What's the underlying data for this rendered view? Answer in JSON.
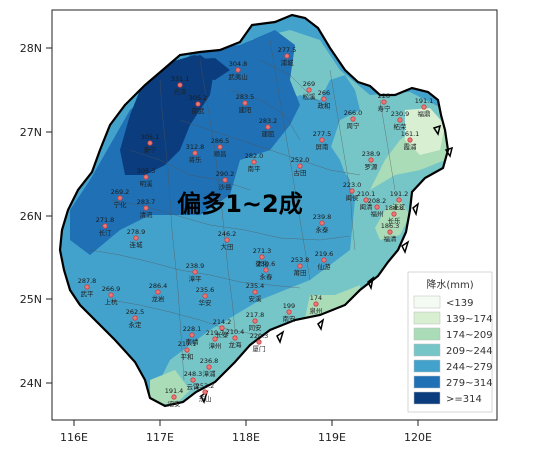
{
  "map": {
    "annotation": "偏多1~2成",
    "x_ticks": [
      "116E",
      "117E",
      "118E",
      "119E",
      "120E"
    ],
    "y_ticks": [
      "28N",
      "27N",
      "26N",
      "25N",
      "24N"
    ]
  },
  "legend": {
    "title": "降水(mm)",
    "items": [
      {
        "label": "<139",
        "color": "#f4fbf2"
      },
      {
        "label": "139~174",
        "color": "#d8efd2"
      },
      {
        "label": "174~209",
        "color": "#aadcb8"
      },
      {
        "label": "209~244",
        "color": "#76c6c8"
      },
      {
        "label": "244~279",
        "color": "#43a2cc"
      },
      {
        "label": "279~314",
        "color": "#1f70b4"
      },
      {
        "label": ">=314",
        "color": "#0b3d7e"
      }
    ]
  },
  "stations": [
    {
      "value": "277.5",
      "name": "浦城"
    },
    {
      "value": "304.8",
      "name": "武夷山"
    },
    {
      "value": "331.1",
      "name": "光泽"
    },
    {
      "value": "305.2",
      "name": "邵武"
    },
    {
      "value": "283.5",
      "name": "建阳"
    },
    {
      "value": "269",
      "name": "松溪"
    },
    {
      "value": "266",
      "name": "政和"
    },
    {
      "value": "228",
      "name": "寿宁"
    },
    {
      "value": "191.1",
      "name": "福鼎"
    },
    {
      "value": "266.0",
      "name": "周宁"
    },
    {
      "value": "230.9",
      "name": "柘荣"
    },
    {
      "value": "161.1",
      "name": "霞浦"
    },
    {
      "value": "283.2",
      "name": "建瓯"
    },
    {
      "value": "277.5",
      "name": "屏南"
    },
    {
      "value": "286.5",
      "name": "顺昌"
    },
    {
      "value": "312.8",
      "name": "将乐"
    },
    {
      "value": "305.1",
      "name": "泰宁"
    },
    {
      "value": "282.0",
      "name": "南平"
    },
    {
      "value": "252.0",
      "name": "古田"
    },
    {
      "value": "238.9",
      "name": "罗源"
    },
    {
      "value": "290.2",
      "name": "沙县"
    },
    {
      "value": "305.3",
      "name": "明溪"
    },
    {
      "value": "223.0",
      "name": "闽侯"
    },
    {
      "value": "210.1",
      "name": "闽清"
    },
    {
      "value": "208.2",
      "name": "福州"
    },
    {
      "value": "191.2",
      "name": "连江"
    },
    {
      "value": "184.8",
      "name": "长乐"
    },
    {
      "value": "186.3",
      "name": "福清"
    },
    {
      "value": "269.2",
      "name": "宁化"
    },
    {
      "value": "283.7",
      "name": "清流"
    },
    {
      "value": "271.8",
      "name": "长汀"
    },
    {
      "value": "278.9",
      "name": "连城"
    },
    {
      "value": "246.2",
      "name": "大田"
    },
    {
      "value": "239.8",
      "name": "永泰"
    },
    {
      "value": "219.6",
      "name": "仙游"
    },
    {
      "value": "271.3",
      "name": "德化"
    },
    {
      "value": "239.6",
      "name": "永春"
    },
    {
      "value": "253.8",
      "name": "莆田"
    },
    {
      "value": "287.8",
      "name": "武平"
    },
    {
      "value": "266.9",
      "name": "上杭"
    },
    {
      "value": "238.9",
      "name": "漳平"
    },
    {
      "value": "286.4",
      "name": "龙岩"
    },
    {
      "value": "235.6",
      "name": "华安"
    },
    {
      "value": "235.4",
      "name": "安溪"
    },
    {
      "value": "199",
      "name": "南安"
    },
    {
      "value": "174",
      "name": "泉州"
    },
    {
      "value": "262.5",
      "name": "永定"
    },
    {
      "value": "217.8",
      "name": "同安"
    },
    {
      "value": "214.2",
      "name": "长泰"
    },
    {
      "value": "228.1",
      "name": "南靖"
    },
    {
      "value": "219.7",
      "name": "漳州"
    },
    {
      "value": "217.1",
      "name": "平和"
    },
    {
      "value": "236.8",
      "name": "漳浦"
    },
    {
      "value": "248.3",
      "name": "云霄"
    },
    {
      "value": "253.2",
      "name": "东山"
    },
    {
      "value": "191.4",
      "name": "诏安"
    },
    {
      "value": "210.4",
      "name": "龙海"
    },
    {
      "value": "220.3",
      "name": "厦门"
    }
  ]
}
